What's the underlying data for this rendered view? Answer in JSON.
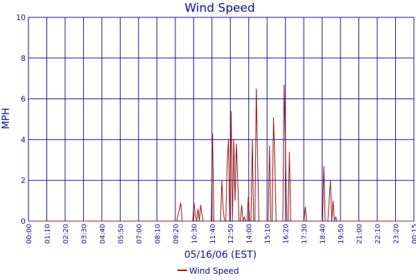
{
  "chart_data": {
    "type": "line",
    "title": "Wind Speed",
    "xlabel": "05/16/06 (EST)",
    "ylabel": "MPH",
    "ylim": [
      0,
      10
    ],
    "y_ticks": [
      0,
      2,
      4,
      6,
      8,
      10
    ],
    "x_range_minutes": [
      0,
      1455
    ],
    "x_ticks": [
      "00:00",
      "01:10",
      "02:20",
      "03:30",
      "04:40",
      "05:50",
      "07:00",
      "08:10",
      "09:20",
      "10:30",
      "11:40",
      "12:50",
      "14:00",
      "15:10",
      "16:20",
      "17:30",
      "18:40",
      "19:50",
      "21:00",
      "22:10",
      "23:20",
      "00:15"
    ],
    "grid": true,
    "legend_position": "bottom-center",
    "colors": {
      "series": "#8b0000",
      "axis_text": "#000080",
      "grid": "#000080"
    },
    "series": [
      {
        "name": "Wind Speed",
        "x": [
          "00:00",
          "08:10",
          "09:20",
          "09:35",
          "09:40",
          "09:45",
          "10:20",
          "10:25",
          "10:30",
          "10:35",
          "10:40",
          "10:45",
          "10:50",
          "10:55",
          "11:00",
          "11:05",
          "11:10",
          "11:30",
          "11:35",
          "11:40",
          "11:45",
          "11:50",
          "12:05",
          "12:10",
          "12:15",
          "12:20",
          "12:25",
          "12:30",
          "12:35",
          "12:40",
          "12:45",
          "12:50",
          "12:55",
          "13:00",
          "13:05",
          "13:10",
          "13:15",
          "13:20",
          "13:25",
          "13:30",
          "13:35",
          "13:40",
          "13:45",
          "13:50",
          "13:55",
          "14:00",
          "14:05",
          "14:10",
          "14:15",
          "14:20",
          "14:25",
          "14:30",
          "14:35",
          "14:40",
          "14:45",
          "14:50",
          "15:00",
          "15:05",
          "15:10",
          "15:15",
          "15:20",
          "15:25",
          "15:30",
          "15:35",
          "15:40",
          "16:00",
          "16:05",
          "16:10",
          "16:15",
          "16:20",
          "16:25",
          "16:30",
          "16:35",
          "16:40",
          "16:45",
          "16:50",
          "16:55",
          "17:00",
          "17:20",
          "17:25",
          "17:30",
          "17:35",
          "18:30",
          "18:35",
          "18:40",
          "18:45",
          "18:50",
          "18:55",
          "19:00",
          "19:05",
          "19:10",
          "19:15",
          "19:20",
          "19:25",
          "19:30",
          "00:15"
        ],
        "values": [
          0,
          0,
          0,
          0.9,
          0,
          0,
          0,
          0.9,
          0.3,
          0,
          0.6,
          0,
          0.8,
          0.3,
          0,
          0,
          0,
          0,
          4.3,
          0,
          0,
          0,
          0,
          2.0,
          0.6,
          0,
          0,
          2.8,
          4.0,
          0,
          5.4,
          0,
          4.0,
          1.0,
          3.8,
          2.0,
          0,
          0,
          0.8,
          0,
          0.2,
          0,
          0,
          1.2,
          0,
          0,
          4.0,
          0,
          0,
          6.5,
          3.0,
          0,
          0,
          0,
          0,
          0,
          0,
          0,
          3.7,
          0,
          0,
          5.1,
          3.0,
          0,
          0,
          0,
          6.7,
          3.5,
          0,
          0,
          3.4,
          0,
          0,
          0,
          0,
          0,
          0,
          0,
          0,
          0.7,
          0,
          0,
          0,
          2.7,
          0,
          0,
          0,
          1.0,
          2.0,
          0,
          1.0,
          0,
          0.2,
          0,
          0,
          0
        ]
      }
    ]
  }
}
